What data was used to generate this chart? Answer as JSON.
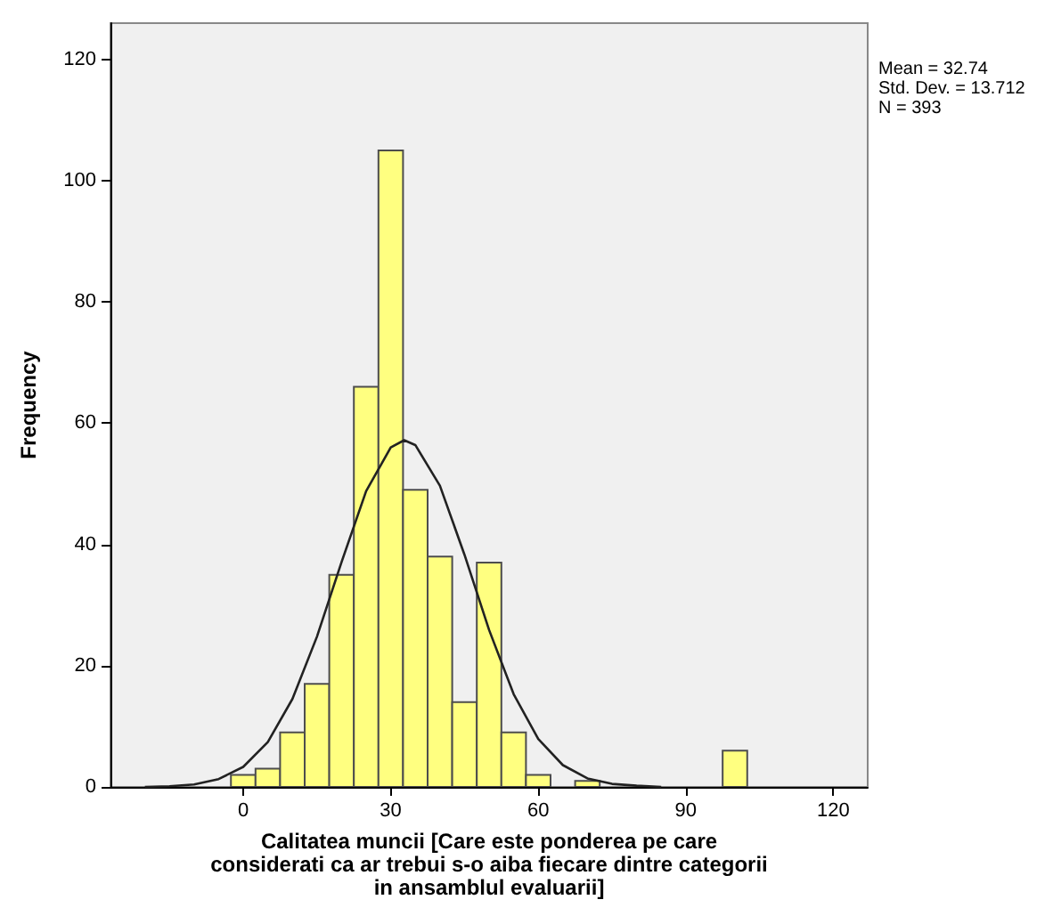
{
  "chart_data": {
    "type": "histogram",
    "xlabel": "Calitatea muncii [Care este ponderea pe care\nconsiderati ca ar trebui s-o aiba fiecare dintre categorii\nin ansamblul evaluarii]",
    "ylabel": "Frequency",
    "annotations": [
      "Mean = 32.74",
      "Std. Dev. = 13.712",
      "N = 393"
    ],
    "xlim": [
      -27,
      127
    ],
    "xticks": [
      0,
      30,
      60,
      90,
      120
    ],
    "ylim": [
      0,
      126
    ],
    "yticks": [
      0,
      20,
      40,
      60,
      80,
      100,
      120
    ],
    "grid": false,
    "series": [
      {
        "color": "#ffff80",
        "bins": [
          -2.5,
          2.5,
          7.5,
          12.5,
          17.5,
          22.5,
          27.5,
          32.5,
          37.5,
          42.5,
          47.5,
          52.5,
          57.5,
          62.5,
          67.5,
          72.5,
          77.5,
          82.5,
          87.5,
          92.5,
          97.5,
          102.5
        ],
        "values": [
          2,
          3,
          9,
          17,
          35,
          66,
          105,
          49,
          38,
          14,
          37,
          9,
          2,
          0,
          1,
          0,
          0,
          0,
          0,
          0,
          6
        ]
      },
      {
        "type": "line",
        "color": "#222222",
        "marker": "none",
        "x": [
          -20,
          -15,
          -10,
          -5,
          0,
          5,
          10,
          15,
          20,
          25,
          30,
          32.74,
          35,
          40,
          45,
          50,
          55,
          60,
          65,
          70,
          75,
          80,
          85
        ],
        "values": [
          0.0,
          0.1,
          0.4,
          1.3,
          3.3,
          7.4,
          14.5,
          24.8,
          37.1,
          48.8,
          56.0,
          57.2,
          56.4,
          49.7,
          38.3,
          25.9,
          15.3,
          7.9,
          3.6,
          1.4,
          0.5,
          0.2,
          0.0
        ]
      }
    ]
  }
}
